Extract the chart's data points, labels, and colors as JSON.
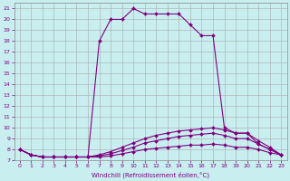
{
  "xlabel": "Windchill (Refroidissement éolien,°C)",
  "background_color": "#c8eef0",
  "grid_color": "#aaaaaa",
  "line_color": "#800080",
  "xlim": [
    -0.5,
    23.5
  ],
  "ylim": [
    7,
    21.5
  ],
  "yticks": [
    7,
    8,
    9,
    10,
    11,
    12,
    13,
    14,
    15,
    16,
    17,
    18,
    19,
    20,
    21
  ],
  "xticks": [
    0,
    1,
    2,
    3,
    4,
    5,
    6,
    7,
    8,
    9,
    10,
    11,
    12,
    13,
    14,
    15,
    16,
    17,
    18,
    19,
    20,
    21,
    22,
    23
  ],
  "lines": [
    {
      "x": [
        0,
        1,
        2,
        3,
        4,
        5,
        6,
        7,
        8,
        9,
        10,
        11,
        12,
        13,
        14,
        15,
        16,
        17,
        18,
        19,
        20,
        21,
        22,
        23
      ],
      "y": [
        8.0,
        7.5,
        7.3,
        7.3,
        7.3,
        7.3,
        7.3,
        18.0,
        20.0,
        20.0,
        21.0,
        20.5,
        20.5,
        20.5,
        20.5,
        19.5,
        18.5,
        18.5,
        10.0,
        9.5,
        9.5,
        8.5,
        8.0,
        7.5
      ]
    },
    {
      "x": [
        0,
        1,
        2,
        3,
        4,
        5,
        6,
        7,
        8,
        9,
        10,
        11,
        12,
        13,
        14,
        15,
        16,
        17,
        18,
        19,
        20,
        21,
        22,
        23
      ],
      "y": [
        8.0,
        7.5,
        7.3,
        7.3,
        7.3,
        7.3,
        7.3,
        7.5,
        7.8,
        8.2,
        8.6,
        9.0,
        9.3,
        9.5,
        9.7,
        9.8,
        9.9,
        10.0,
        9.8,
        9.5,
        9.5,
        8.8,
        8.2,
        7.5
      ]
    },
    {
      "x": [
        0,
        1,
        2,
        3,
        4,
        5,
        6,
        7,
        8,
        9,
        10,
        11,
        12,
        13,
        14,
        15,
        16,
        17,
        18,
        19,
        20,
        21,
        22,
        23
      ],
      "y": [
        8.0,
        7.5,
        7.3,
        7.3,
        7.3,
        7.3,
        7.3,
        7.4,
        7.6,
        7.9,
        8.2,
        8.6,
        8.8,
        9.0,
        9.2,
        9.3,
        9.4,
        9.5,
        9.3,
        9.0,
        9.0,
        8.5,
        8.0,
        7.5
      ]
    },
    {
      "x": [
        0,
        1,
        2,
        3,
        4,
        5,
        6,
        7,
        8,
        9,
        10,
        11,
        12,
        13,
        14,
        15,
        16,
        17,
        18,
        19,
        20,
        21,
        22,
        23
      ],
      "y": [
        8.0,
        7.5,
        7.3,
        7.3,
        7.3,
        7.3,
        7.3,
        7.3,
        7.4,
        7.6,
        7.8,
        8.0,
        8.1,
        8.2,
        8.3,
        8.4,
        8.4,
        8.5,
        8.4,
        8.2,
        8.2,
        8.0,
        7.7,
        7.5
      ]
    }
  ]
}
